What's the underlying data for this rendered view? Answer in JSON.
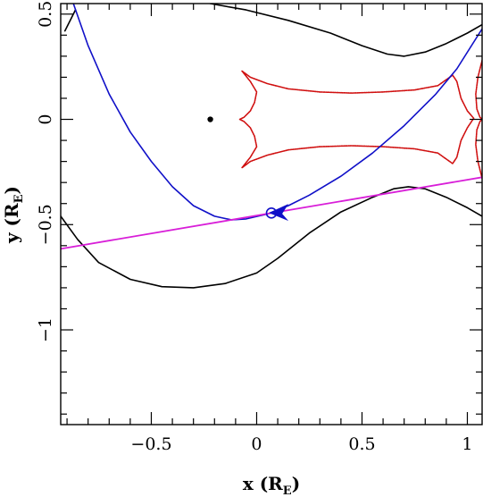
{
  "chart_data": {
    "type": "line",
    "title": "",
    "xlabel": "x (R",
    "xlabel_sub": "E",
    "xlabel_close": ")",
    "ylabel": "y (R",
    "ylabel_sub": "E",
    "ylabel_close": ")",
    "xlim": [
      -0.93,
      1.07
    ],
    "ylim": [
      -1.45,
      0.55
    ],
    "x_ticks": [
      -0.5,
      0,
      0.5,
      1
    ],
    "x_tick_labels": [
      "−0.5",
      "0",
      "0.5",
      "1"
    ],
    "y_ticks": [
      -1,
      -0.5,
      0,
      0.5
    ],
    "y_tick_labels": [
      "−1",
      "−0.5",
      "0",
      "0.5"
    ],
    "minor_tick_step": 0.1,
    "grid": false,
    "legend": "none",
    "series": [
      {
        "role": "critical-curve-upper",
        "color": "#000000",
        "points": [
          [
            -0.91,
            0.42
          ],
          [
            -0.88,
            0.48
          ],
          [
            -0.86,
            0.52
          ]
        ]
      },
      {
        "role": "critical-curve-upper-right",
        "color": "#000000",
        "points": [
          [
            -0.22,
            0.55
          ],
          [
            -0.05,
            0.52
          ],
          [
            0.15,
            0.47
          ],
          [
            0.35,
            0.41
          ],
          [
            0.5,
            0.35
          ],
          [
            0.62,
            0.31
          ],
          [
            0.7,
            0.3
          ],
          [
            0.8,
            0.32
          ],
          [
            0.9,
            0.36
          ],
          [
            1.0,
            0.41
          ],
          [
            1.07,
            0.45
          ]
        ]
      },
      {
        "role": "critical-curve-lower",
        "color": "#000000",
        "points": [
          [
            -0.93,
            -0.46
          ],
          [
            -0.85,
            -0.57
          ],
          [
            -0.75,
            -0.68
          ],
          [
            -0.6,
            -0.76
          ],
          [
            -0.45,
            -0.795
          ],
          [
            -0.3,
            -0.8
          ],
          [
            -0.15,
            -0.78
          ],
          [
            0.0,
            -0.73
          ],
          [
            0.1,
            -0.66
          ],
          [
            0.25,
            -0.54
          ],
          [
            0.4,
            -0.44
          ],
          [
            0.55,
            -0.37
          ],
          [
            0.65,
            -0.33
          ],
          [
            0.72,
            -0.32
          ],
          [
            0.8,
            -0.33
          ],
          [
            0.9,
            -0.37
          ],
          [
            1.0,
            -0.42
          ],
          [
            1.07,
            -0.46
          ]
        ]
      },
      {
        "role": "caustic",
        "color": "#d01010",
        "points": [
          [
            -0.08,
            0.0
          ],
          [
            -0.06,
            0.01
          ],
          [
            -0.03,
            0.04
          ],
          [
            -0.01,
            0.08
          ],
          [
            0.0,
            0.13
          ],
          [
            -0.03,
            0.18
          ],
          [
            -0.07,
            0.23
          ],
          [
            -0.03,
            0.2
          ],
          [
            0.05,
            0.17
          ],
          [
            0.15,
            0.145
          ],
          [
            0.3,
            0.13
          ],
          [
            0.45,
            0.125
          ],
          [
            0.6,
            0.13
          ],
          [
            0.75,
            0.14
          ],
          [
            0.86,
            0.16
          ],
          [
            0.93,
            0.21
          ],
          [
            0.95,
            0.18
          ],
          [
            0.97,
            0.1
          ],
          [
            1.0,
            0.04
          ],
          [
            1.03,
            0.005
          ],
          [
            1.0,
            -0.04
          ],
          [
            0.97,
            -0.1
          ],
          [
            0.95,
            -0.18
          ],
          [
            0.93,
            -0.21
          ],
          [
            0.86,
            -0.16
          ],
          [
            0.75,
            -0.14
          ],
          [
            0.6,
            -0.13
          ],
          [
            0.45,
            -0.125
          ],
          [
            0.3,
            -0.13
          ],
          [
            0.15,
            -0.145
          ],
          [
            0.05,
            -0.17
          ],
          [
            -0.03,
            -0.2
          ],
          [
            -0.07,
            -0.23
          ],
          [
            -0.03,
            -0.18
          ],
          [
            0.0,
            -0.13
          ],
          [
            -0.01,
            -0.08
          ],
          [
            -0.03,
            -0.04
          ],
          [
            -0.06,
            -0.01
          ],
          [
            -0.08,
            0.0
          ]
        ]
      },
      {
        "role": "caustic-right",
        "color": "#d01010",
        "points": [
          [
            1.07,
            0.28
          ],
          [
            1.05,
            0.2
          ],
          [
            1.04,
            0.12
          ],
          [
            1.045,
            0.05
          ],
          [
            1.06,
            0.01
          ],
          [
            1.07,
            0.0
          ]
        ]
      },
      {
        "role": "caustic-right-lower",
        "color": "#d01010",
        "points": [
          [
            1.07,
            0.0
          ],
          [
            1.06,
            -0.01
          ],
          [
            1.045,
            -0.05
          ],
          [
            1.04,
            -0.12
          ],
          [
            1.05,
            -0.2
          ],
          [
            1.07,
            -0.28
          ]
        ]
      },
      {
        "role": "lens-trajectory",
        "color": "#1010c8",
        "points": [
          [
            -0.87,
            0.55
          ],
          [
            -0.8,
            0.35
          ],
          [
            -0.7,
            0.12
          ],
          [
            -0.6,
            -0.06
          ],
          [
            -0.5,
            -0.2
          ],
          [
            -0.4,
            -0.32
          ],
          [
            -0.3,
            -0.41
          ],
          [
            -0.2,
            -0.46
          ],
          [
            -0.12,
            -0.477
          ],
          [
            -0.05,
            -0.473
          ],
          [
            0.05,
            -0.45
          ],
          [
            0.15,
            -0.41
          ],
          [
            0.25,
            -0.36
          ],
          [
            0.4,
            -0.27
          ],
          [
            0.55,
            -0.16
          ],
          [
            0.7,
            -0.03
          ],
          [
            0.85,
            0.12
          ],
          [
            0.95,
            0.24
          ],
          [
            1.07,
            0.43
          ]
        ]
      },
      {
        "role": "source-trajectory",
        "color": "#d81ed8",
        "points": [
          [
            -0.93,
            -0.615
          ],
          [
            1.07,
            -0.275
          ]
        ]
      }
    ],
    "markers": [
      {
        "role": "lens-dot",
        "x": -0.22,
        "y": 0.0,
        "color": "#000000"
      },
      {
        "role": "source-circle",
        "x": 0.07,
        "y": -0.445,
        "color": "#1010c8"
      },
      {
        "role": "direction-arrow",
        "x": 0.1,
        "y": -0.44,
        "color": "#1010c8",
        "direction": "left"
      }
    ]
  }
}
